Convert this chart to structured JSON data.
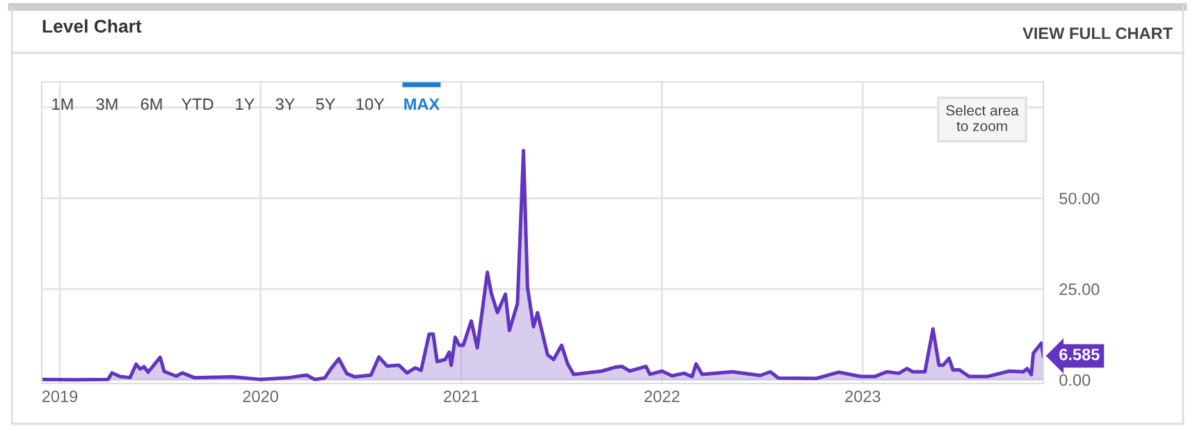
{
  "chart_data": {
    "type": "area",
    "title": "Level Chart",
    "x": [
      2018.91,
      2019.07,
      2019.24,
      2019.26,
      2019.3,
      2019.35,
      2019.38,
      2019.4,
      2019.42,
      2019.44,
      2019.5,
      2019.52,
      2019.58,
      2019.61,
      2019.67,
      2019.86,
      2020.0,
      2020.14,
      2020.23,
      2020.27,
      2020.32,
      2020.35,
      2020.39,
      2020.43,
      2020.47,
      2020.55,
      2020.59,
      2020.63,
      2020.69,
      2020.73,
      2020.77,
      2020.8,
      2020.84,
      2020.86,
      2020.88,
      2020.92,
      2020.94,
      2020.95,
      2020.97,
      2020.99,
      2021.01,
      2021.05,
      2021.08,
      2021.13,
      2021.15,
      2021.18,
      2021.22,
      2021.24,
      2021.28,
      2021.31,
      2021.33,
      2021.36,
      2021.38,
      2021.43,
      2021.46,
      2021.5,
      2021.53,
      2021.56,
      2021.7,
      2021.77,
      2021.8,
      2021.84,
      2021.92,
      2021.94,
      2022.0,
      2022.05,
      2022.11,
      2022.15,
      2022.17,
      2022.2,
      2022.35,
      2022.49,
      2022.54,
      2022.58,
      2022.77,
      2022.88,
      2022.99,
      2023.06,
      2023.12,
      2023.18,
      2023.22,
      2023.25,
      2023.31,
      2023.35,
      2023.38,
      2023.4,
      2023.43,
      2023.45,
      2023.48,
      2023.53,
      2023.62,
      2023.73,
      2023.8,
      2023.82,
      2023.84,
      2023.85,
      2023.89,
      2023.9
    ],
    "series": [
      {
        "color": "#6234c0",
        "values": [
          0.1,
          0,
          0.1,
          1.9,
          0.9,
          0.6,
          4.3,
          3.0,
          3.6,
          2.1,
          6.2,
          2.3,
          1.0,
          1.9,
          0.6,
          0.8,
          0.1,
          0.6,
          1.3,
          0.1,
          0.5,
          3.0,
          5.8,
          1.7,
          0.8,
          1.3,
          6.3,
          3.8,
          4.0,
          1.9,
          3.3,
          2.6,
          12.6,
          12.6,
          5.0,
          5.6,
          7.6,
          4.0,
          11.7,
          9.5,
          9.5,
          16.2,
          8.8,
          29.6,
          23.8,
          18.5,
          23.6,
          13.6,
          21.0,
          63.1,
          25.5,
          14.6,
          18.5,
          6.9,
          5.6,
          9.5,
          4.4,
          1.5,
          2.4,
          3.5,
          3.7,
          2.4,
          3.7,
          1.5,
          2.4,
          1.1,
          1.8,
          0.9,
          4.4,
          1.5,
          2.2,
          1.2,
          2.2,
          0.5,
          0.4,
          2.1,
          0.9,
          0.9,
          2.2,
          1.8,
          3.1,
          2.2,
          2.2,
          14.0,
          4.0,
          4.0,
          5.9,
          2.7,
          2.8,
          0.9,
          0.9,
          2.4,
          2.2,
          3.1,
          1.4,
          7.3,
          10.1,
          6.585
        ]
      }
    ],
    "xlim": [
      2018.91,
      2023.9
    ],
    "ylim": [
      -1,
      82
    ],
    "xticks": [
      2019,
      2020,
      2021,
      2022,
      2023
    ],
    "yticks": [
      {
        "value": 0,
        "label": "0.00"
      },
      {
        "value": 25,
        "label": "25.00"
      },
      {
        "value": 50,
        "label": "50.00"
      },
      {
        "value": 75,
        "label": null
      }
    ],
    "grid": true,
    "annotations": [
      "1M",
      "3M",
      "6M",
      "YTD",
      "1Y",
      "3Y",
      "5Y",
      "10Y",
      "MAX",
      "Select area\nto zoom",
      "VIEW FULL CHART",
      {
        "text": "6.585",
        "x": 2023.9,
        "y": 6.585
      }
    ]
  }
}
